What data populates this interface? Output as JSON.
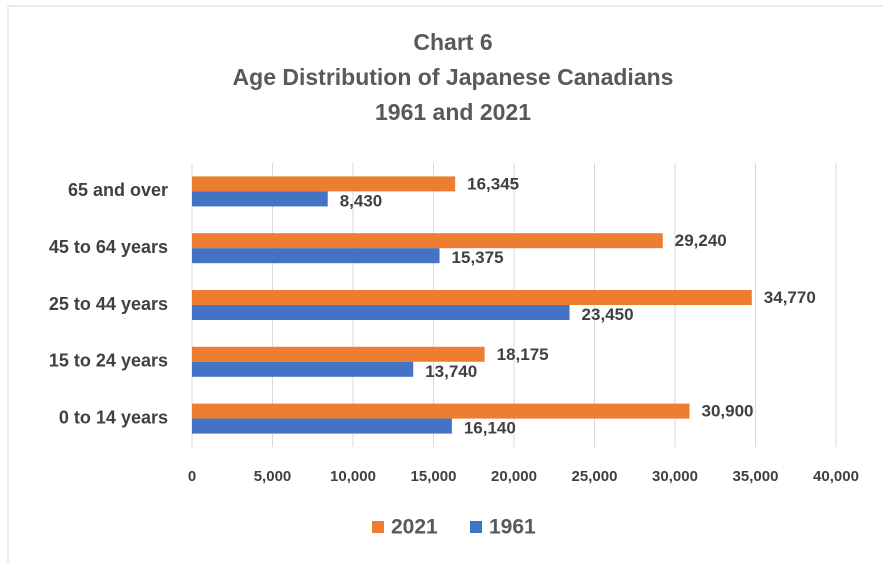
{
  "chart_data": {
    "type": "bar",
    "orientation": "horizontal",
    "title": [
      "Chart  6",
      "Age Distribution of Japanese Canadians",
      "1961 and 2021"
    ],
    "categories": [
      "65 and over",
      "45 to 64 years",
      "25 to 44 years",
      "15 to 24 years",
      "0 to 14 years"
    ],
    "series": [
      {
        "name": "2021",
        "color": "#ED7D31",
        "values": [
          16345,
          29240,
          34770,
          18175,
          30900
        ],
        "value_labels": [
          "16,345",
          "29,240",
          "34,770",
          "18,175",
          "30,900"
        ]
      },
      {
        "name": "1961",
        "color": "#4472C4",
        "values": [
          8430,
          15375,
          23450,
          13740,
          16140
        ],
        "value_labels": [
          "8,430",
          "15,375",
          "23,450",
          "13,740",
          "16,140"
        ]
      }
    ],
    "xlim": [
      0,
      40000
    ],
    "xticks": [
      0,
      {
        "value": 5000,
        "label": "5,000"
      },
      {
        "value": 10000,
        "label": "10,000"
      },
      {
        "value": 15000,
        "label": "15,000"
      },
      {
        "value": 20000,
        "label": "20,000"
      },
      {
        "value": 25000,
        "label": "25,000"
      },
      {
        "value": 30000,
        "label": "30,000"
      },
      {
        "value": 35000,
        "label": "35,000"
      },
      {
        "value": 40000,
        "label": "40,000"
      }
    ],
    "grid": true,
    "legend": "bottom"
  }
}
